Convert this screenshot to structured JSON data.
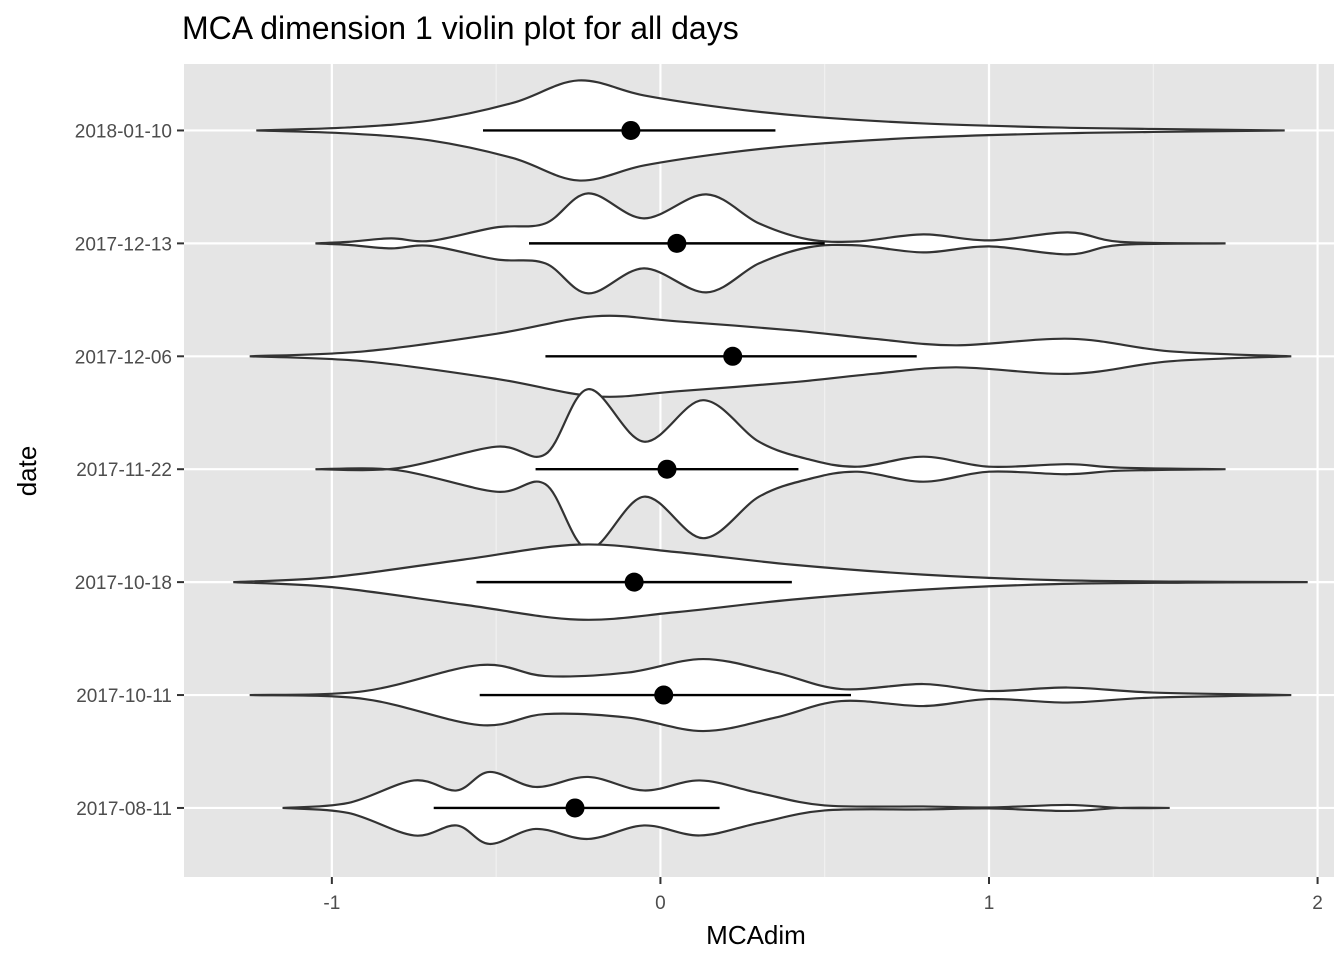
{
  "chart_data": {
    "type": "violin",
    "orientation": "horizontal",
    "title": "MCA dimension 1 violin plot for all days",
    "xlabel": "MCAdim",
    "ylabel": "date",
    "xlim": [
      -1.45,
      2.05
    ],
    "xticks": [
      -1,
      0,
      1,
      2
    ],
    "xtick_labels": [
      "-1",
      "0",
      "1",
      "2"
    ],
    "grid": true,
    "panel_background": "#e5e5e5",
    "categories": [
      "2018-01-10",
      "2017-12-13",
      "2017-12-06",
      "2017-11-22",
      "2017-10-18",
      "2017-10-11",
      "2017-08-11"
    ],
    "series": [
      {
        "category": "2018-01-10",
        "range": [
          -1.23,
          1.9
        ],
        "mean": -0.09,
        "interval": [
          -0.54,
          0.35
        ],
        "density": [
          [
            -1.23,
            0.0
          ],
          [
            -0.95,
            0.06
          ],
          [
            -0.7,
            0.2
          ],
          [
            -0.45,
            0.55
          ],
          [
            -0.25,
            1.0
          ],
          [
            -0.05,
            0.7
          ],
          [
            0.2,
            0.45
          ],
          [
            0.45,
            0.28
          ],
          [
            0.8,
            0.14
          ],
          [
            1.2,
            0.06
          ],
          [
            1.5,
            0.03
          ],
          [
            1.9,
            0.0
          ]
        ]
      },
      {
        "category": "2017-12-13",
        "range": [
          -1.05,
          1.72
        ],
        "mean": 0.05,
        "interval": [
          -0.4,
          0.5
        ],
        "density": [
          [
            -1.05,
            0.0
          ],
          [
            -0.95,
            0.03
          ],
          [
            -0.82,
            0.1
          ],
          [
            -0.7,
            0.05
          ],
          [
            -0.5,
            0.32
          ],
          [
            -0.35,
            0.4
          ],
          [
            -0.22,
            1.0
          ],
          [
            -0.05,
            0.5
          ],
          [
            0.14,
            0.98
          ],
          [
            0.3,
            0.4
          ],
          [
            0.45,
            0.08
          ],
          [
            0.6,
            0.04
          ],
          [
            0.8,
            0.18
          ],
          [
            1.0,
            0.06
          ],
          [
            1.24,
            0.22
          ],
          [
            1.4,
            0.03
          ],
          [
            1.72,
            0.0
          ]
        ]
      },
      {
        "category": "2017-12-06",
        "range": [
          -1.25,
          1.92
        ],
        "mean": 0.22,
        "interval": [
          -0.35,
          0.78
        ],
        "density": [
          [
            -1.25,
            0.0
          ],
          [
            -0.9,
            0.1
          ],
          [
            -0.5,
            0.45
          ],
          [
            -0.2,
            0.8
          ],
          [
            0.05,
            0.7
          ],
          [
            0.4,
            0.52
          ],
          [
            0.65,
            0.35
          ],
          [
            0.9,
            0.22
          ],
          [
            1.25,
            0.35
          ],
          [
            1.55,
            0.1
          ],
          [
            1.92,
            0.0
          ]
        ]
      },
      {
        "category": "2017-11-22",
        "range": [
          -1.05,
          1.72
        ],
        "mean": 0.02,
        "interval": [
          -0.38,
          0.42
        ],
        "density": [
          [
            -1.05,
            0.0
          ],
          [
            -0.8,
            0.02
          ],
          [
            -0.5,
            0.45
          ],
          [
            -0.35,
            0.3
          ],
          [
            -0.22,
            1.6
          ],
          [
            -0.05,
            0.55
          ],
          [
            0.13,
            1.38
          ],
          [
            0.3,
            0.55
          ],
          [
            0.45,
            0.2
          ],
          [
            0.6,
            0.05
          ],
          [
            0.8,
            0.25
          ],
          [
            1.0,
            0.05
          ],
          [
            1.24,
            0.1
          ],
          [
            1.4,
            0.03
          ],
          [
            1.72,
            0.0
          ]
        ]
      },
      {
        "category": "2017-10-18",
        "range": [
          -1.3,
          1.97
        ],
        "mean": -0.08,
        "interval": [
          -0.56,
          0.4
        ],
        "density": [
          [
            -1.3,
            0.0
          ],
          [
            -1.0,
            0.1
          ],
          [
            -0.6,
            0.45
          ],
          [
            -0.25,
            0.75
          ],
          [
            0.05,
            0.6
          ],
          [
            0.4,
            0.35
          ],
          [
            0.8,
            0.15
          ],
          [
            1.2,
            0.04
          ],
          [
            1.6,
            0.01
          ],
          [
            1.97,
            0.0
          ]
        ]
      },
      {
        "category": "2017-10-11",
        "range": [
          -1.25,
          1.92
        ],
        "mean": 0.01,
        "interval": [
          -0.55,
          0.58
        ],
        "density": [
          [
            -1.25,
            0.0
          ],
          [
            -0.9,
            0.08
          ],
          [
            -0.55,
            0.6
          ],
          [
            -0.35,
            0.38
          ],
          [
            -0.1,
            0.45
          ],
          [
            0.13,
            0.72
          ],
          [
            0.35,
            0.45
          ],
          [
            0.55,
            0.12
          ],
          [
            0.8,
            0.22
          ],
          [
            1.0,
            0.08
          ],
          [
            1.24,
            0.15
          ],
          [
            1.5,
            0.05
          ],
          [
            1.92,
            0.0
          ]
        ]
      },
      {
        "category": "2017-08-11",
        "range": [
          -1.15,
          1.55
        ],
        "mean": -0.26,
        "interval": [
          -0.69,
          0.18
        ],
        "density": [
          [
            -1.15,
            0.0
          ],
          [
            -0.95,
            0.1
          ],
          [
            -0.75,
            0.55
          ],
          [
            -0.62,
            0.35
          ],
          [
            -0.52,
            0.72
          ],
          [
            -0.38,
            0.42
          ],
          [
            -0.22,
            0.62
          ],
          [
            -0.05,
            0.35
          ],
          [
            0.12,
            0.55
          ],
          [
            0.3,
            0.3
          ],
          [
            0.5,
            0.05
          ],
          [
            0.8,
            0.03
          ],
          [
            1.0,
            0.01
          ],
          [
            1.24,
            0.06
          ],
          [
            1.4,
            0.0
          ],
          [
            1.55,
            0.0
          ]
        ]
      }
    ]
  }
}
